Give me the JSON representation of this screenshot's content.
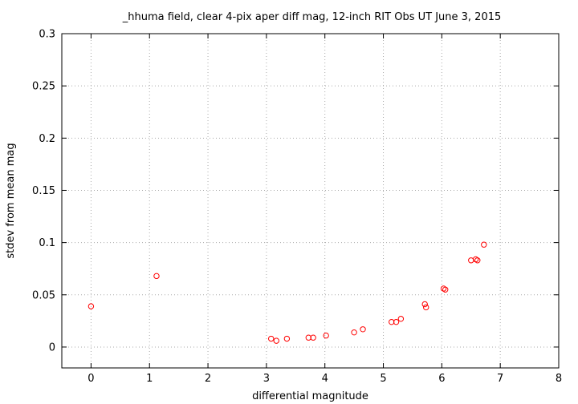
{
  "chart_data": {
    "type": "scatter",
    "title": "_hhuma field, clear 4-pix aper diff mag,  12-inch RIT Obs UT June 3, 2015",
    "xlabel": "differential magnitude",
    "ylabel": "stdev from mean mag",
    "xlim": [
      -0.5,
      8
    ],
    "ylim": [
      -0.02,
      0.3
    ],
    "xticks": [
      0,
      1,
      2,
      3,
      4,
      5,
      6,
      7,
      8
    ],
    "xtick_labels": [
      "0",
      "1",
      "2",
      "3",
      "4",
      "5",
      "6",
      "7",
      "8"
    ],
    "yticks": [
      0,
      0.05,
      0.1,
      0.15,
      0.2,
      0.25,
      0.3
    ],
    "ytick_labels": [
      "0",
      "0.05",
      "0.1",
      "0.15",
      "0.2",
      "0.25",
      "0.3"
    ],
    "grid": true,
    "marker_color": "#ff0000",
    "series": [
      {
        "points": [
          [
            0.0,
            0.039
          ],
          [
            1.12,
            0.068
          ],
          [
            3.08,
            0.008
          ],
          [
            3.17,
            0.006
          ],
          [
            3.35,
            0.008
          ],
          [
            3.72,
            0.009
          ],
          [
            3.8,
            0.009
          ],
          [
            4.02,
            0.011
          ],
          [
            4.5,
            0.014
          ],
          [
            4.65,
            0.017
          ],
          [
            5.14,
            0.024
          ],
          [
            5.22,
            0.024
          ],
          [
            5.3,
            0.027
          ],
          [
            5.71,
            0.041
          ],
          [
            5.73,
            0.038
          ],
          [
            6.03,
            0.056
          ],
          [
            6.06,
            0.055
          ],
          [
            6.5,
            0.083
          ],
          [
            6.58,
            0.084
          ],
          [
            6.61,
            0.083
          ],
          [
            6.72,
            0.098
          ]
        ]
      }
    ]
  }
}
